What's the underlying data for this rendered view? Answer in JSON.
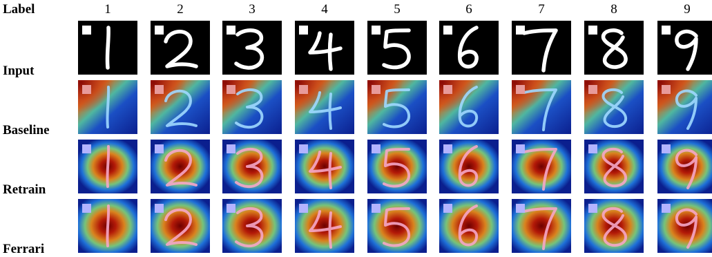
{
  "header_label": "Label",
  "row_labels": [
    "Input",
    "Baseline",
    "Retrain",
    "Ferrari"
  ],
  "digits": [
    "1",
    "2",
    "3",
    "4",
    "5",
    "6",
    "7",
    "8",
    "9"
  ]
}
